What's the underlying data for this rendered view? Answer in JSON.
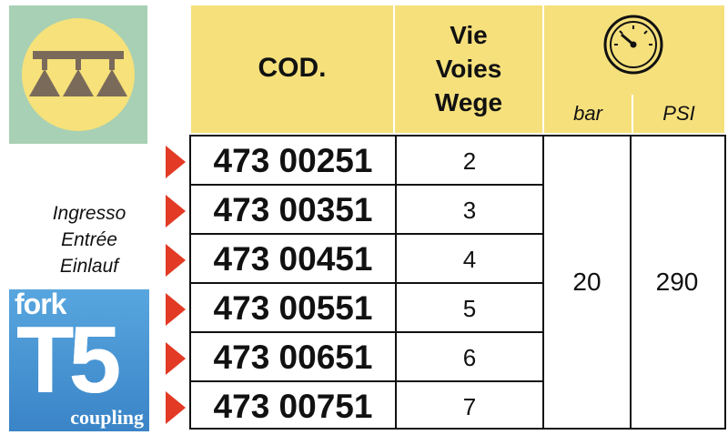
{
  "header": {
    "code_label": "COD.",
    "ways_lines": [
      "Vie",
      "Voies",
      "Wege"
    ],
    "pressure_icon": "pressure-gauge-icon",
    "unit_bar": "bar",
    "unit_psi": "PSI"
  },
  "spray_icon": "spray-boom-icon",
  "inlet_lines": [
    "Ingresso",
    "Entrée",
    "Einlauf"
  ],
  "logo": {
    "fork": "fork",
    "model": "T5",
    "coupling": "coupling"
  },
  "rows": [
    {
      "code": "473 00251",
      "ways": "2"
    },
    {
      "code": "473 00351",
      "ways": "3"
    },
    {
      "code": "473 00451",
      "ways": "4"
    },
    {
      "code": "473 00551",
      "ways": "5"
    },
    {
      "code": "473 00651",
      "ways": "6"
    },
    {
      "code": "473 00751",
      "ways": "7"
    }
  ],
  "pressure": {
    "bar": "20",
    "psi": "290"
  },
  "colors": {
    "header_bg": "#f5e07c",
    "icon_box_bg": "#a8d0b4",
    "arrow": "#e23a24",
    "logo_bg": "#4a96d4"
  }
}
